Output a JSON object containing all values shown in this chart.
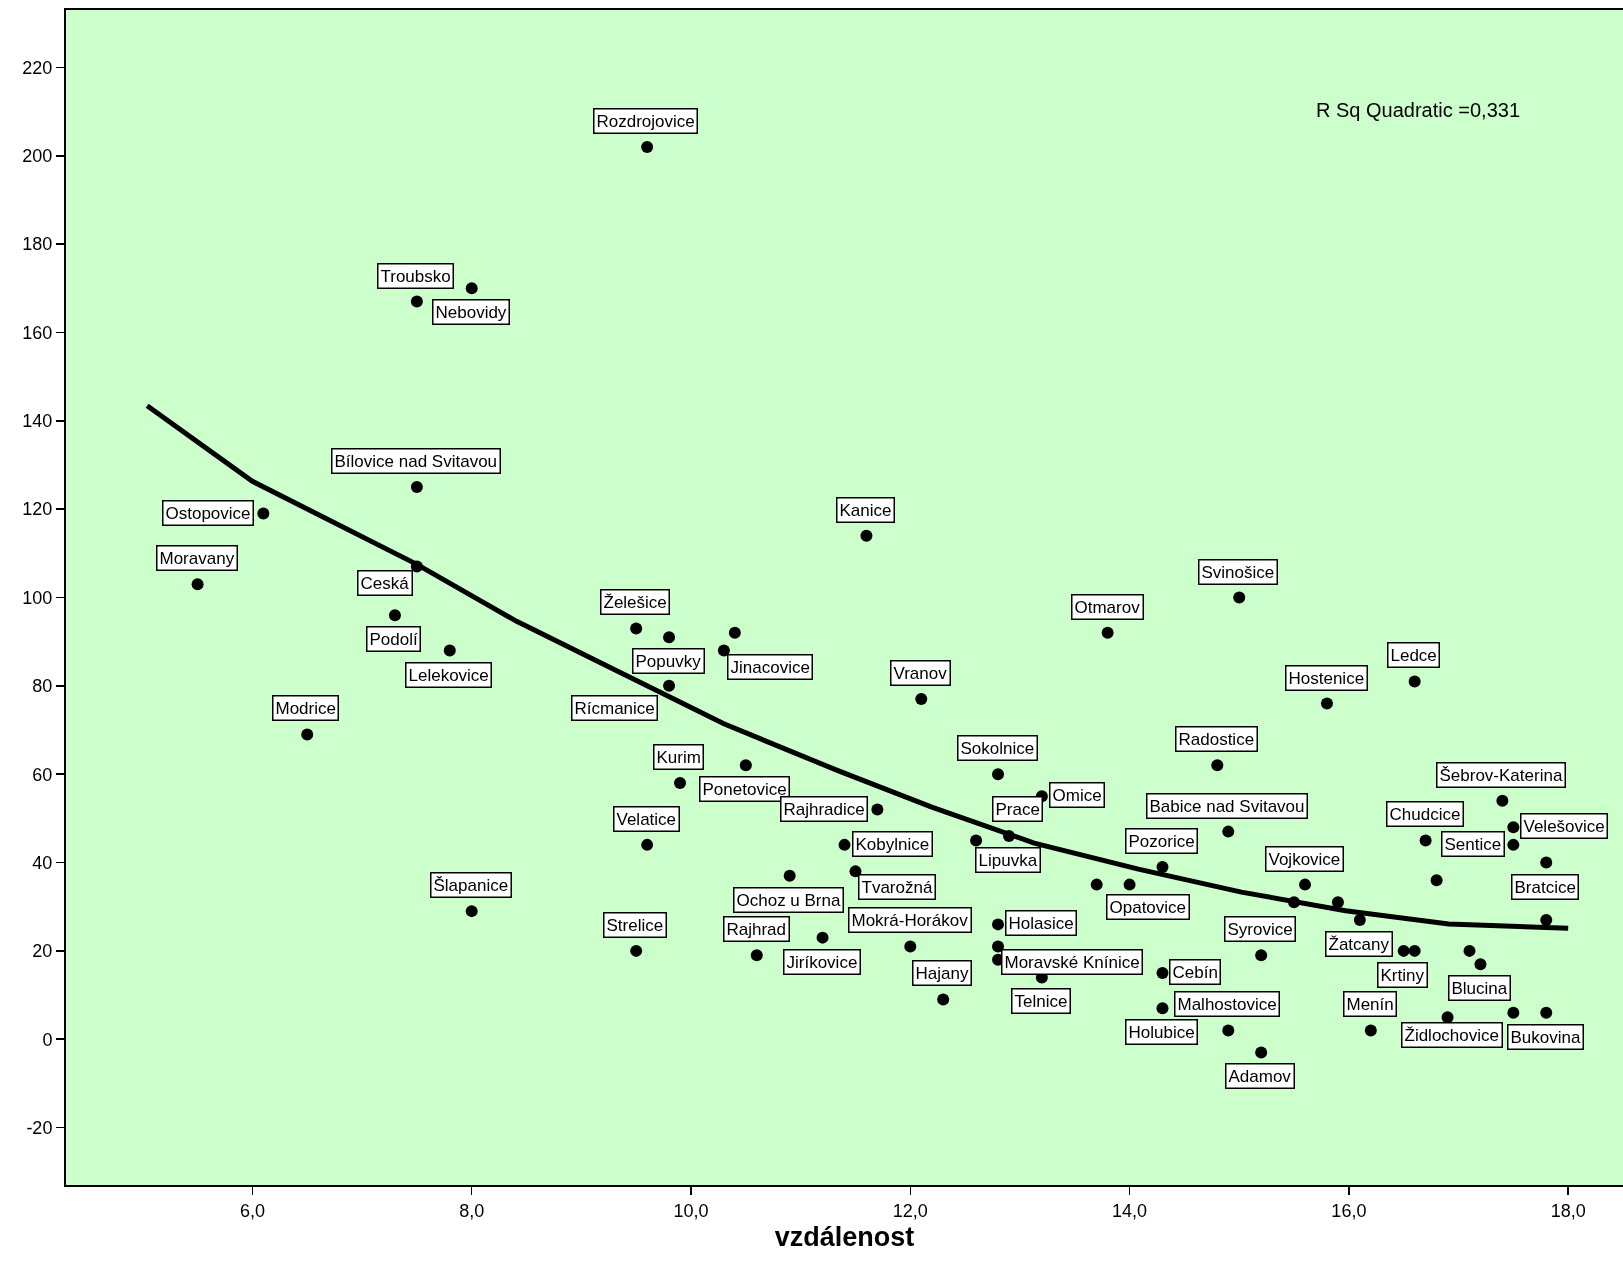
{
  "chart_data": {
    "type": "scatter",
    "xlabel": "vzdálenost",
    "xlim": [
      4.3,
      18.5
    ],
    "xticks": [
      {
        "value": 6,
        "label": "6,0"
      },
      {
        "value": 8,
        "label": "8,0"
      },
      {
        "value": 10,
        "label": "10,0"
      },
      {
        "value": 12,
        "label": "12,0"
      },
      {
        "value": 14,
        "label": "14,0"
      },
      {
        "value": 16,
        "label": "16,0"
      },
      {
        "value": 18,
        "label": "18,0"
      }
    ],
    "ylim": [
      -33,
      233
    ],
    "yticks": [
      -20,
      0,
      20,
      40,
      60,
      80,
      100,
      120,
      140,
      160,
      180,
      200,
      220
    ],
    "grid": false,
    "marker": "circle",
    "annotations": [
      "R Sq Quadratic =0,331"
    ],
    "series": [
      {
        "color": "#000000",
        "x": [
          5.5,
          6.1,
          7.5,
          8.0,
          7.5,
          7.5,
          7.3,
          7.8,
          6.5,
          8.0,
          9.6,
          11.6,
          9.5,
          9.8,
          10.3,
          10.4,
          9.8,
          9.9,
          10.5,
          9.6,
          11.4,
          10.9,
          11.5,
          9.5,
          11.2,
          12.0,
          12.8,
          12.8,
          12.8,
          12.3,
          13.2,
          12.1,
          12.8,
          11.7,
          13.2,
          12.9,
          13.8,
          13.7,
          14.0,
          14.3,
          14.3,
          14.3,
          14.9,
          15.2,
          15.0,
          14.8,
          14.9,
          15.6,
          15.5,
          15.2,
          15.9,
          16.1,
          15.8,
          16.6,
          17.4,
          16.7,
          17.5,
          17.5,
          17.8,
          16.8,
          16.5,
          16.6,
          17.2,
          17.1,
          17.8,
          16.2,
          16.9,
          17.8,
          17.5,
          12.6,
          10.6
        ],
        "values": [
          103,
          119,
          167,
          170,
          125,
          107,
          96,
          88,
          69,
          29,
          202,
          114,
          93,
          91,
          88,
          92,
          80,
          58,
          62,
          44,
          44,
          37,
          38,
          20,
          23,
          21,
          26,
          21,
          18,
          9,
          14,
          77,
          60,
          52,
          55,
          46,
          92,
          35,
          35,
          39,
          15,
          7,
          2,
          -3,
          100,
          62,
          47,
          35,
          31,
          19,
          31,
          27,
          76,
          81,
          54,
          45,
          48,
          44,
          40,
          36,
          20,
          20,
          17,
          20,
          27,
          2,
          5,
          6,
          6,
          45,
          19
        ],
        "value_labels": [
          "Moravany",
          "Ostopovice",
          "Troubsko",
          "Nebovidy",
          "Bílovice nad Svitavou",
          "Ceská",
          "Podolí",
          "Lelekovice",
          "Modrice",
          "Šlapanice",
          "Rozdrojovice",
          "Kanice",
          "Želešice",
          "Popuvky",
          "Jinacovice",
          null,
          "Rícmanice",
          "Kurim",
          "Ponetovice",
          "Velatice",
          "Kobylnice",
          "Ochoz u Brna",
          "Tvarožná",
          "Strelice",
          "Jiríkovice",
          "Mokrá-Horákov",
          "Holasice",
          "Moravské Knínice",
          null,
          "Hajany",
          "Telnice",
          "Vranov",
          "Sokolnice",
          "Rajhradice",
          "Omice",
          "Lipuvka",
          "Otmarov",
          "Opatovice",
          null,
          "Pozorice",
          "Cebín",
          "Holubice",
          "Malhostovice",
          "Adamov",
          "Svinošice",
          "Radostice",
          "Babice nad Svitavou",
          "Vojkovice",
          null,
          "Syrovice",
          null,
          "Žatcany",
          "Hostenice",
          "Ledce",
          "Šebrov-Katerina",
          "Chudcice",
          "Velešovice",
          "Sentice",
          "Bratcice",
          null,
          "Krtiny",
          null,
          "Blucina",
          null,
          null,
          "Menín",
          null,
          "Bukovina",
          "Židlochovice",
          "Prace",
          "Rajhrad"
        ]
      },
      {
        "type": "line",
        "color": "#000000",
        "marker": "none",
        "x": [
          5.04,
          6.0,
          7.5,
          8.41,
          9.35,
          10.3,
          11.34,
          12.19,
          13.13,
          14.08,
          15.02,
          15.97,
          16.91,
          18.0
        ],
        "values": [
          143.4,
          126.3,
          107.5,
          94.6,
          83.1,
          71.4,
          60.8,
          52.6,
          44.4,
          38.5,
          33.3,
          29.1,
          26.1,
          25.1
        ]
      }
    ]
  }
}
